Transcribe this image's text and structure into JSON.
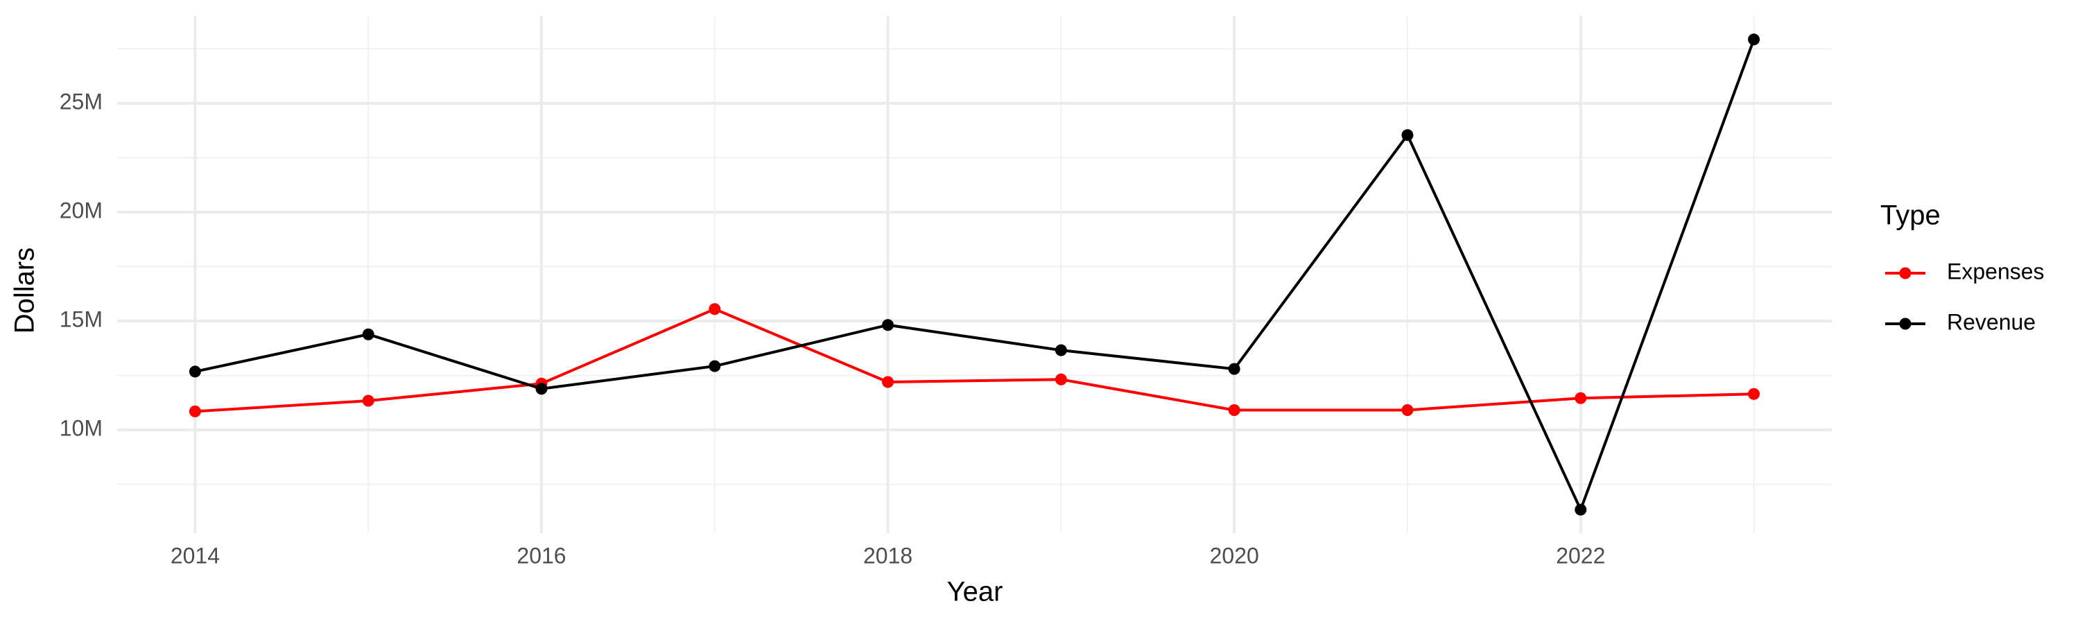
{
  "chart_data": {
    "type": "line",
    "x_label": "Year",
    "y_label": "Dollars",
    "legend_title": "Type",
    "x": [
      2014,
      2015,
      2016,
      2017,
      2018,
      2019,
      2020,
      2021,
      2022,
      2023
    ],
    "series": [
      {
        "name": "Expenses",
        "color": "#ff0000",
        "values": [
          10850000,
          11340000,
          12130000,
          15550000,
          12200000,
          12320000,
          10910000,
          10910000,
          11460000,
          11650000
        ]
      },
      {
        "name": "Revenue",
        "color": "#000000",
        "values": [
          12680000,
          14390000,
          11890000,
          12930000,
          14820000,
          13660000,
          12800000,
          23540000,
          6340000,
          27930000
        ]
      }
    ],
    "xlim": [
      2013.55,
      2023.45
    ],
    "xticks": [
      2014,
      2016,
      2018,
      2020,
      2022
    ],
    "ylim": [
      5260000,
      29010000
    ],
    "yticks": [
      {
        "value": 10000000,
        "label": "10M"
      },
      {
        "value": 15000000,
        "label": "15M"
      },
      {
        "value": 20000000,
        "label": "20M"
      },
      {
        "value": 25000000,
        "label": "25M"
      }
    ],
    "grid": true,
    "legend": "right"
  }
}
